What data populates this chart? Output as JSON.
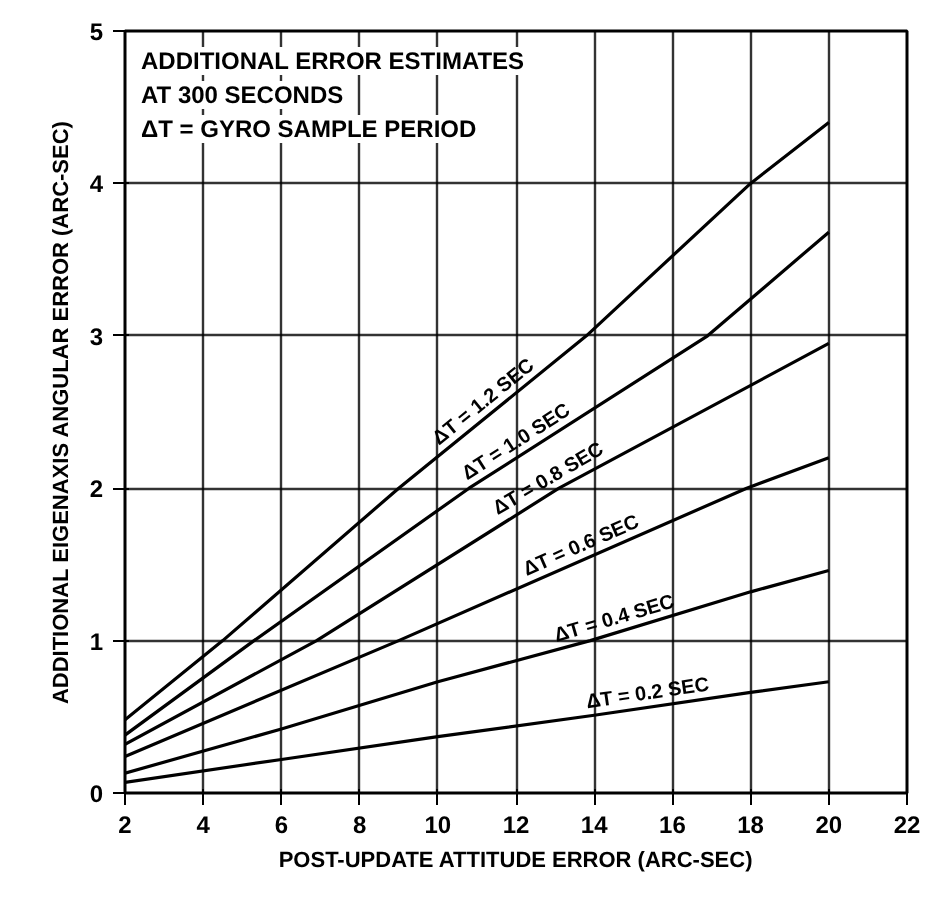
{
  "chart_data": {
    "type": "line",
    "xlabel": "POST-UPDATE ATTITUDE ERROR (ARC-SEC)",
    "ylabel": "ADDITIONAL EIGENAXIS ANGULAR ERROR (ARC-SEC)",
    "annotations": [
      "ADDITIONAL ERROR ESTIMATES",
      "AT 300 SECONDS",
      "ΔT = GYRO SAMPLE PERIOD"
    ],
    "xlim": [
      2,
      22
    ],
    "ylim": [
      0,
      5
    ],
    "xticks": [
      2,
      4,
      6,
      8,
      10,
      12,
      14,
      16,
      18,
      20,
      22
    ],
    "yticks": [
      0,
      1,
      2,
      3,
      4,
      5
    ],
    "grid": true,
    "marker": "none",
    "line_style": "solid",
    "series": [
      {
        "name": "ΔT = 1.2 SEC",
        "color": "#000000",
        "x": [
          2,
          4.5,
          9.0,
          13.8,
          18,
          20
        ],
        "values": [
          0.48,
          1,
          2,
          3,
          4,
          4.4
        ]
      },
      {
        "name": "ΔT = 1.0 SEC",
        "color": "#000000",
        "x": [
          2,
          5.3,
          10.8,
          16.9,
          20
        ],
        "values": [
          0.38,
          1,
          2,
          3,
          3.68
        ]
      },
      {
        "name": "ΔT = 0.8 SEC",
        "color": "#000000",
        "x": [
          2,
          6.9,
          13.1,
          20
        ],
        "values": [
          0.32,
          1,
          2,
          2.95
        ]
      },
      {
        "name": "ΔT = 0.6 SEC",
        "color": "#000000",
        "x": [
          2,
          9.0,
          17.9,
          20
        ],
        "values": [
          0.24,
          1,
          2,
          2.2
        ]
      },
      {
        "name": "ΔT = 0.4 SEC",
        "color": "#000000",
        "x": [
          2,
          6,
          10,
          13.9,
          18,
          20
        ],
        "values": [
          0.13,
          0.42,
          0.73,
          1,
          1.32,
          1.46
        ]
      },
      {
        "name": "ΔT = 0.2 SEC",
        "color": "#000000",
        "x": [
          2,
          6,
          10,
          14,
          18,
          20
        ],
        "values": [
          0.07,
          0.22,
          0.37,
          0.51,
          0.66,
          0.73
        ]
      }
    ]
  }
}
